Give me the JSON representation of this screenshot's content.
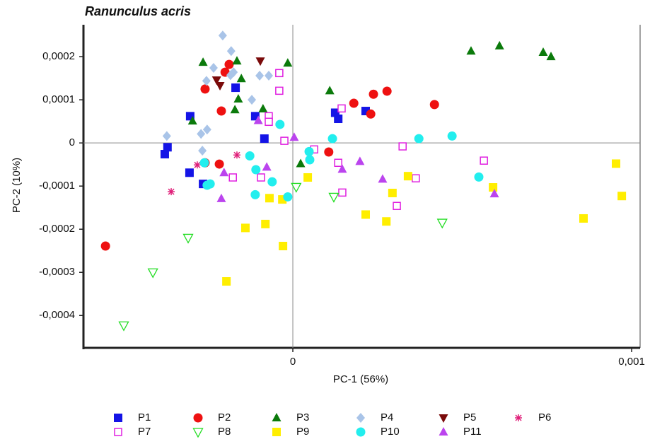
{
  "chart_data": {
    "type": "scatter",
    "title": "Ranunculus acris",
    "x_label": "PC-1 (56%)",
    "y_label": "PC-2 (10%)",
    "xlim": [
      -0.000618,
      0.001025
    ],
    "ylim": [
      -0.000475,
      0.000274
    ],
    "xticks": [
      0,
      {
        "value": 0.001,
        "label": "0,001"
      }
    ],
    "yticks": [
      {
        "value": -0.0004,
        "label": "-0,0004"
      },
      {
        "value": -0.0003,
        "label": "-0,0003"
      },
      {
        "value": -0.0002,
        "label": "-0,0002"
      },
      {
        "value": -0.0001,
        "label": "-0,0001"
      },
      0,
      {
        "value": 0.0001,
        "label": "0,0001"
      },
      {
        "value": 0.0002,
        "label": "0,0002"
      }
    ],
    "zero_lines": true,
    "series": [
      {
        "name": "P1",
        "color": "#1414e6",
        "marker": "square",
        "x": [
          -0.000303,
          -0.000169,
          -0.000111,
          -8.4e-05,
          0.000125,
          0.000134,
          0.000215,
          -0.00037,
          -0.000378,
          -0.000305,
          -0.000265
        ],
        "y": [
          6.2e-05,
          0.000128,
          6.2e-05,
          1e-05,
          7e-05,
          5.6e-05,
          7.4e-05,
          -1e-05,
          -2.6e-05,
          -6.9e-05,
          -9.5e-05
        ]
      },
      {
        "name": "P2",
        "color": "#ee1111",
        "marker": "circle",
        "x": [
          -0.000553,
          -0.000259,
          -0.000211,
          -0.0002,
          -0.000188,
          -0.000217,
          -0.000259,
          0.000106,
          0.00018,
          0.000238,
          0.000278,
          0.00023,
          0.000418
        ],
        "y": [
          -0.000239,
          0.000125,
          7.4e-05,
          0.000164,
          0.000182,
          -4.9e-05,
          -4.6e-05,
          -2.1e-05,
          9.2e-05,
          0.000113,
          0.00012,
          6.7e-05,
          8.9e-05
        ]
      },
      {
        "name": "P3",
        "color": "#0b7a0b",
        "marker": "triangle",
        "x": [
          -0.000265,
          -0.000296,
          -0.000165,
          -0.000152,
          -0.000171,
          -8.8e-05,
          -1.5e-05,
          0.000109,
          2.3e-05,
          0.000526,
          0.00061,
          0.000739,
          0.000762,
          -0.000161
        ],
        "y": [
          0.000187,
          5.1e-05,
          0.00019,
          0.000149,
          7.7e-05,
          7.9e-05,
          0.000185,
          0.000121,
          -4.8e-05,
          0.000213,
          0.000225,
          0.00021,
          0.0002,
          0.000102
        ]
      },
      {
        "name": "P4",
        "color": "#a9c4e8",
        "marker": "diamond",
        "x": [
          -0.000372,
          -0.000207,
          -0.000182,
          -0.000234,
          -0.000255,
          -0.000184,
          -0.000175,
          -0.000121,
          -9.8e-05,
          -7.1e-05,
          -0.000267,
          -0.000253,
          -0.000271
        ],
        "y": [
          1.6e-05,
          0.000249,
          0.000213,
          0.000174,
          0.000144,
          0.000157,
          0.000164,
          0.0001,
          0.000156,
          0.000156,
          -1.8e-05,
          3.1e-05,
          2.1e-05
        ]
      },
      {
        "name": "P5",
        "color": "#7a0a0a",
        "marker": "triangle-down",
        "x": [
          -9.6e-05,
          -0.000225,
          -0.000215
        ],
        "y": [
          0.00019,
          0.000146,
          0.000133
        ]
      },
      {
        "name": "P6",
        "color": "#e0207a",
        "marker": "asterisk",
        "x": [
          -0.000359,
          -0.000282,
          -0.000165
        ],
        "y": [
          -0.000113,
          -5.1e-05,
          -2.8e-05
        ]
      },
      {
        "name": "P7",
        "color": "#e020e0",
        "marker": "square-open",
        "x": [
          -4e-05,
          -4e-05,
          -7.1e-05,
          -7.1e-05,
          -2.5e-05,
          6.3e-05,
          0.000144,
          0.000134,
          0.000146,
          -9.4e-05,
          -0.000177,
          0.000324,
          0.000363,
          0.000307,
          0.000564
        ],
        "y": [
          0.000162,
          0.000121,
          6.2e-05,
          4.9e-05,
          5e-06,
          -1.5e-05,
          8e-05,
          -4.6e-05,
          -0.000115,
          -8e-05,
          -8e-05,
          -8e-06,
          -8.2e-05,
          -0.000146,
          -4.1e-05
        ]
      },
      {
        "name": "P8",
        "color": "#22dd22",
        "marker": "triangle-down-open",
        "x": [
          -0.000499,
          -0.000413,
          -0.000309,
          1e-05,
          0.000121,
          0.000441
        ],
        "y": [
          -0.000423,
          -0.0003,
          -0.00022,
          -0.000102,
          -0.000125,
          -0.000185
        ]
      },
      {
        "name": "P9",
        "color": "#ffee00",
        "marker": "square",
        "x": [
          -0.000196,
          -0.00014,
          -8.1e-05,
          -6.9e-05,
          -3.1e-05,
          -2.9e-05,
          4.4e-05,
          0.000215,
          0.000276,
          0.000294,
          0.00034,
          0.000591,
          0.000858,
          0.000954,
          0.000971
        ],
        "y": [
          -0.000321,
          -0.000197,
          -0.000188,
          -0.000128,
          -0.000131,
          -0.000239,
          -8e-05,
          -0.000166,
          -0.000182,
          -0.000116,
          -7.7e-05,
          -0.000103,
          -0.000175,
          -4.8e-05,
          -0.000123
        ]
      },
      {
        "name": "P10",
        "color": "#22eeee",
        "marker": "circle",
        "x": [
          -0.000261,
          -0.000253,
          -0.000244,
          -0.000127,
          -0.000109,
          -0.000111,
          -6.1e-05,
          -3.8e-05,
          -1.5e-05,
          4.8e-05,
          5e-05,
          0.000117,
          0.000372,
          0.00047,
          0.000549
        ],
        "y": [
          -4.6e-05,
          -9.8e-05,
          -9.5e-05,
          -3e-05,
          -6.2e-05,
          -0.00012,
          -9e-05,
          4.3e-05,
          -0.000125,
          -2e-05,
          -3.9e-05,
          1e-05,
          1e-05,
          1.6e-05,
          -7.9e-05
        ]
      },
      {
        "name": "P11",
        "color": "#bb44ee",
        "marker": "triangle",
        "x": [
          -0.000102,
          4e-06,
          -0.000203,
          -0.000211,
          -7.7e-05,
          0.000146,
          0.000198,
          0.000265,
          0.000595
        ],
        "y": [
          5.2e-05,
          1.3e-05,
          -6.9e-05,
          -0.000129,
          -5.6e-05,
          -6.1e-05,
          -4.3e-05,
          -8.4e-05,
          -0.000118
        ]
      }
    ]
  }
}
